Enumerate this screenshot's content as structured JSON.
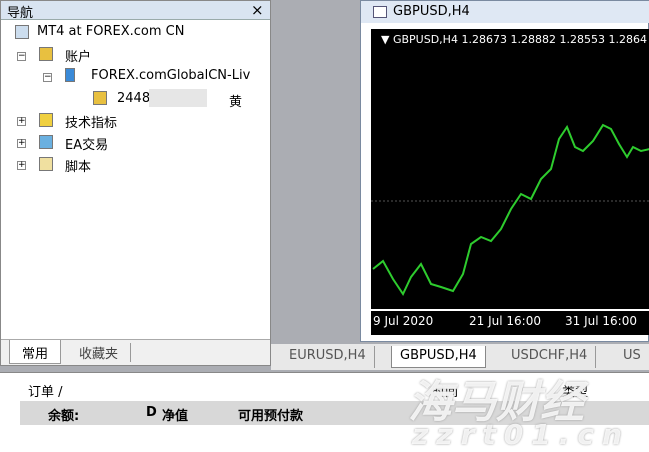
{
  "navigator": {
    "title": "导航",
    "close": "×",
    "tree": [
      {
        "label": "MT4 at FOREX.com CN"
      },
      {
        "label": "账户"
      },
      {
        "label": "FOREX.comGlobalCN-Liv"
      },
      {
        "label": "2448",
        "suffix": "黄"
      },
      {
        "label": "技术指标"
      },
      {
        "label": "EA交易"
      },
      {
        "label": "脚本"
      }
    ],
    "tabs": [
      "常用",
      "收藏夹"
    ]
  },
  "chart_window": {
    "title": "GBPUSD,H4",
    "header": "GBPUSD,H4",
    "ohlc": [
      "1.28673",
      "1.28882",
      "1.28553",
      "1.2864"
    ],
    "x_labels": [
      "9 Jul 2020",
      "21 Jul 16:00",
      "31 Jul 16:00"
    ]
  },
  "symbol_tabs": [
    "EURUSD,H4",
    "GBPUSD,H4",
    "USDCHF,H4",
    "US"
  ],
  "terminal": {
    "columns": [
      "订单 /",
      "时间",
      "类型"
    ],
    "summary": [
      "余额:",
      "D",
      "净值",
      "可用预付款"
    ]
  },
  "watermark": {
    "brand": "海马财经",
    "url": "zzrt01.cn"
  }
}
